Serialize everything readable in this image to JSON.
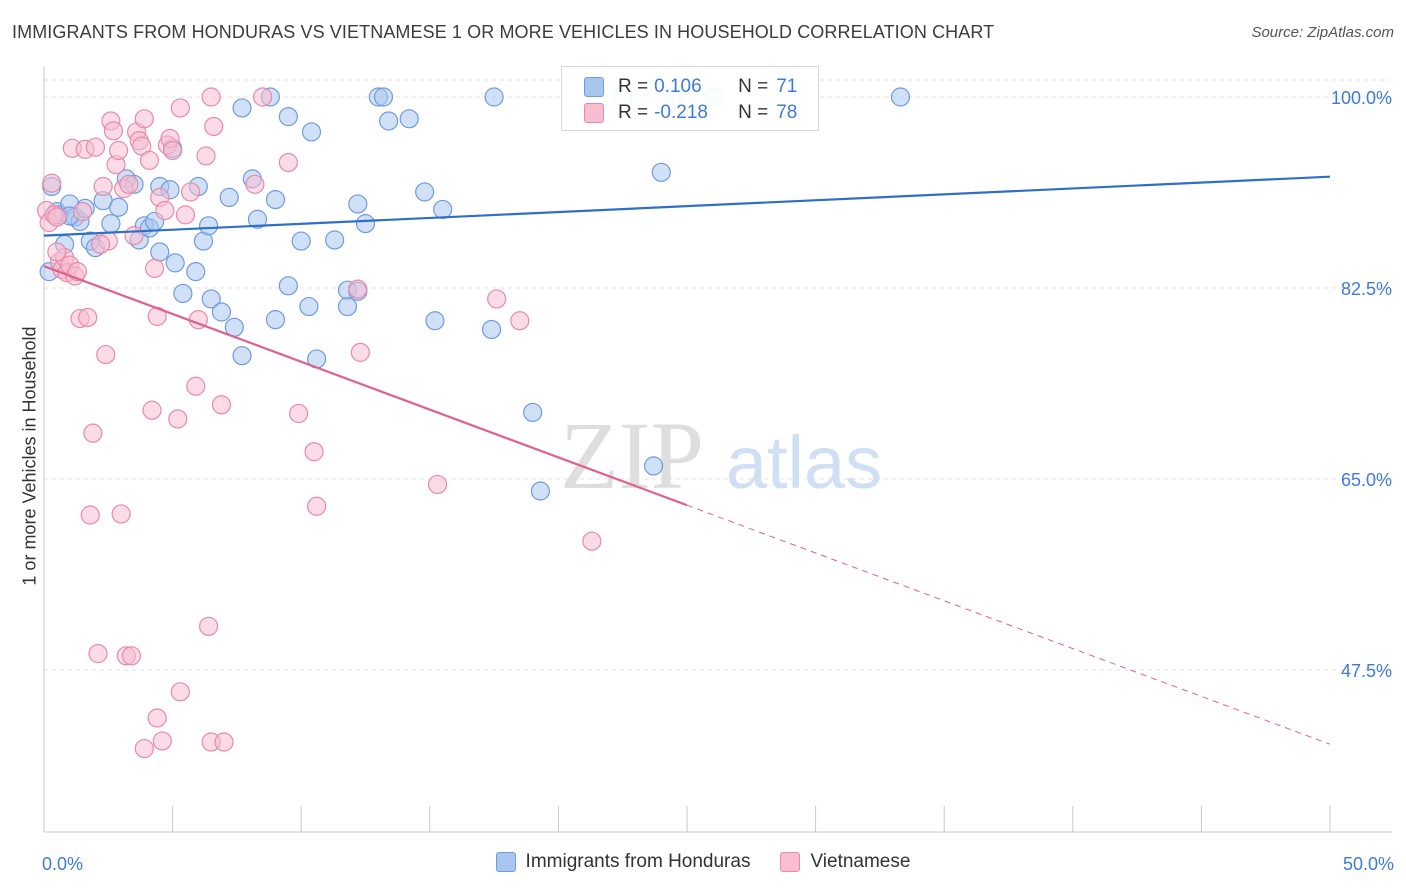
{
  "title": "IMMIGRANTS FROM HONDURAS VS VIETNAMESE 1 OR MORE VEHICLES IN HOUSEHOLD CORRELATION CHART",
  "source": "Source: ZipAtlas.com",
  "watermark": {
    "zip": "ZIP",
    "atlas": "atlas"
  },
  "legend": {
    "r_label": "R =",
    "n_label": "N =",
    "rows": [
      {
        "r": "0.106",
        "n": "71",
        "color": "#a9c6ef",
        "stroke": "#6f9be0"
      },
      {
        "r": "-0.218",
        "n": "78",
        "color": "#f8bdd0",
        "stroke": "#e88aa8"
      }
    ]
  },
  "chart_data": {
    "type": "scatter",
    "title": "IMMIGRANTS FROM HONDURAS VS VIETNAMESE 1 OR MORE VEHICLES IN HOUSEHOLD CORRELATION CHART",
    "xlabel": "",
    "ylabel": "1 or more Vehicles in Household",
    "xlim": [
      0,
      50
    ],
    "ylim": [
      30,
      101
    ],
    "x_tick_labels": [
      "0.0%",
      "50.0%"
    ],
    "y_ticks": [
      100.0,
      82.5,
      65.0,
      47.5
    ],
    "y_tick_labels": [
      "100.0%",
      "82.5%",
      "65.0%",
      "47.5%"
    ],
    "grid": true,
    "legend_position": "bottom",
    "series": [
      {
        "name": "Immigrants from Honduras",
        "color": "#a9c6ef",
        "stroke": "#6f9be0",
        "line_color": "#2f6fc6",
        "trend": {
          "x0": 0,
          "y0": 87.3,
          "x1": 50,
          "y1": 92.7
        },
        "points": [
          [
            0.3,
            91.8
          ],
          [
            0.5,
            89.5
          ],
          [
            0.6,
            89.2
          ],
          [
            0.8,
            86.5
          ],
          [
            1.0,
            90.2
          ],
          [
            1.2,
            89.0
          ],
          [
            1.4,
            88.6
          ],
          [
            1.6,
            89.8
          ],
          [
            1.8,
            86.8
          ],
          [
            2.0,
            86.2
          ],
          [
            2.3,
            90.5
          ],
          [
            2.6,
            88.4
          ],
          [
            2.9,
            89.9
          ],
          [
            3.2,
            92.5
          ],
          [
            3.5,
            92.0
          ],
          [
            3.7,
            86.9
          ],
          [
            3.9,
            88.2
          ],
          [
            4.1,
            88.0
          ],
          [
            4.3,
            88.6
          ],
          [
            4.5,
            91.8
          ],
          [
            4.5,
            85.8
          ],
          [
            4.9,
            91.5
          ],
          [
            5.0,
            95.3
          ],
          [
            5.1,
            84.8
          ],
          [
            5.4,
            82.0
          ],
          [
            5.9,
            84.0
          ],
          [
            6.0,
            91.8
          ],
          [
            6.2,
            86.8
          ],
          [
            6.4,
            88.2
          ],
          [
            6.5,
            81.5
          ],
          [
            6.9,
            80.3
          ],
          [
            7.2,
            90.8
          ],
          [
            7.4,
            78.9
          ],
          [
            7.7,
            76.3
          ],
          [
            7.7,
            99.0
          ],
          [
            8.1,
            92.5
          ],
          [
            8.3,
            88.8
          ],
          [
            8.8,
            100.0
          ],
          [
            9.0,
            90.6
          ],
          [
            9.0,
            79.6
          ],
          [
            9.5,
            82.7
          ],
          [
            9.5,
            98.2
          ],
          [
            10.0,
            86.8
          ],
          [
            10.3,
            80.8
          ],
          [
            10.4,
            96.8
          ],
          [
            10.6,
            76.0
          ],
          [
            11.3,
            86.9
          ],
          [
            11.8,
            82.3
          ],
          [
            11.8,
            80.8
          ],
          [
            12.2,
            82.2
          ],
          [
            12.2,
            90.2
          ],
          [
            12.5,
            88.4
          ],
          [
            13.0,
            100.0
          ],
          [
            13.2,
            100.0
          ],
          [
            13.4,
            97.8
          ],
          [
            14.2,
            98.0
          ],
          [
            14.8,
            91.3
          ],
          [
            15.2,
            79.5
          ],
          [
            15.5,
            89.7
          ],
          [
            17.4,
            78.7
          ],
          [
            17.5,
            100.0
          ],
          [
            19.0,
            71.1
          ],
          [
            22.5,
            100.0
          ],
          [
            23.7,
            66.2
          ],
          [
            24.0,
            93.1
          ],
          [
            24.5,
            100.0
          ],
          [
            26.0,
            100.0
          ],
          [
            33.3,
            100.0
          ],
          [
            19.3,
            63.9
          ],
          [
            0.2,
            84.0
          ],
          [
            1.0,
            89.1
          ]
        ]
      },
      {
        "name": "Vietnamese",
        "color": "#f8bdd0",
        "stroke": "#e88aa8",
        "line_color": "#e0608e",
        "trend": {
          "x0": 0,
          "y0": 84.5,
          "x1": 25,
          "y1": 62.6
        },
        "trend_dashed": {
          "x0": 25,
          "y0": 62.6,
          "x1": 50,
          "y1": 40.7
        },
        "points": [
          [
            0.1,
            89.6
          ],
          [
            0.2,
            88.5
          ],
          [
            0.3,
            92.1
          ],
          [
            0.4,
            89.2
          ],
          [
            0.5,
            89.0
          ],
          [
            0.6,
            84.9
          ],
          [
            0.7,
            84.2
          ],
          [
            0.8,
            85.3
          ],
          [
            0.9,
            83.9
          ],
          [
            1.0,
            84.6
          ],
          [
            1.1,
            95.3
          ],
          [
            1.2,
            83.6
          ],
          [
            1.3,
            84.0
          ],
          [
            1.4,
            79.7
          ],
          [
            1.6,
            95.2
          ],
          [
            1.7,
            79.8
          ],
          [
            1.8,
            61.7
          ],
          [
            1.9,
            69.2
          ],
          [
            2.0,
            95.4
          ],
          [
            2.1,
            49.0
          ],
          [
            2.3,
            91.8
          ],
          [
            2.4,
            76.4
          ],
          [
            2.5,
            86.8
          ],
          [
            2.6,
            97.8
          ],
          [
            2.7,
            96.9
          ],
          [
            2.8,
            93.8
          ],
          [
            2.9,
            95.1
          ],
          [
            3.0,
            61.8
          ],
          [
            3.1,
            91.6
          ],
          [
            3.2,
            48.8
          ],
          [
            3.3,
            92.0
          ],
          [
            3.4,
            48.8
          ],
          [
            3.5,
            87.3
          ],
          [
            3.6,
            96.8
          ],
          [
            3.7,
            96.0
          ],
          [
            3.8,
            95.5
          ],
          [
            3.9,
            98.0
          ],
          [
            3.9,
            40.3
          ],
          [
            4.1,
            94.2
          ],
          [
            4.2,
            71.3
          ],
          [
            4.3,
            84.3
          ],
          [
            4.4,
            43.1
          ],
          [
            4.4,
            79.9
          ],
          [
            4.5,
            90.8
          ],
          [
            4.6,
            41.0
          ],
          [
            4.8,
            95.6
          ],
          [
            4.9,
            96.2
          ],
          [
            5.0,
            95.1
          ],
          [
            5.2,
            70.5
          ],
          [
            5.3,
            45.5
          ],
          [
            5.3,
            99.0
          ],
          [
            5.5,
            89.2
          ],
          [
            5.7,
            91.3
          ],
          [
            5.9,
            73.5
          ],
          [
            6.0,
            79.6
          ],
          [
            6.3,
            94.6
          ],
          [
            6.4,
            51.5
          ],
          [
            6.5,
            100.0
          ],
          [
            6.5,
            40.9
          ],
          [
            6.6,
            97.3
          ],
          [
            6.9,
            71.8
          ],
          [
            7.0,
            40.9
          ],
          [
            8.2,
            92.0
          ],
          [
            8.5,
            100.0
          ],
          [
            9.5,
            94.0
          ],
          [
            9.9,
            71.0
          ],
          [
            10.5,
            67.5
          ],
          [
            10.6,
            62.5
          ],
          [
            12.2,
            82.4
          ],
          [
            12.3,
            76.6
          ],
          [
            15.3,
            64.5
          ],
          [
            17.6,
            81.5
          ],
          [
            18.5,
            79.5
          ],
          [
            21.3,
            59.3
          ],
          [
            0.5,
            85.8
          ],
          [
            2.2,
            86.5
          ],
          [
            4.7,
            89.6
          ],
          [
            1.5,
            89.5
          ]
        ]
      }
    ]
  }
}
